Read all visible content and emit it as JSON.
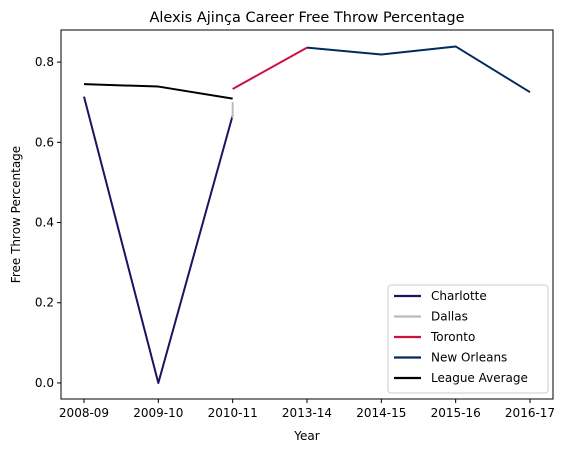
{
  "chart_data": {
    "type": "line",
    "title": "Alexis Ajinça Career Free Throw Percentage",
    "xlabel": "Year",
    "ylabel": "Free Throw Percentage",
    "categories": [
      "2008-09",
      "2009-10",
      "2010-11",
      "2013-14",
      "2014-15",
      "2015-16",
      "2016-17"
    ],
    "ylim": [
      -0.04,
      0.88
    ],
    "yticks": [
      0.0,
      0.2,
      0.4,
      0.6,
      0.8
    ],
    "ytick_labels": [
      "0.0",
      "0.2",
      "0.4",
      "0.6",
      "0.8"
    ],
    "grid": false,
    "legend_position": "lower-right",
    "series": [
      {
        "name": "Charlotte",
        "color": "#1d1160",
        "points": [
          [
            "2008-09",
            0.714
          ],
          [
            "2009-10",
            0.0
          ],
          [
            "2010-11",
            0.667
          ]
        ]
      },
      {
        "name": "Dallas",
        "color": "#bbbbbb",
        "points": [
          [
            "2010-11",
            0.7
          ],
          [
            "2010-11",
            0.66
          ]
        ]
      },
      {
        "name": "Toronto",
        "color": "#ce1141",
        "points": [
          [
            "2010-11",
            0.733
          ],
          [
            "2013-14",
            0.836
          ]
        ]
      },
      {
        "name": "New Orleans",
        "color": "#002b5c",
        "points": [
          [
            "2013-14",
            0.836
          ],
          [
            "2014-15",
            0.819
          ],
          [
            "2015-16",
            0.839
          ],
          [
            "2016-17",
            0.725
          ]
        ]
      },
      {
        "name": "League Average",
        "color": "#000000",
        "points": [
          [
            "2008-09",
            0.745
          ],
          [
            "2009-10",
            0.739
          ],
          [
            "2010-11",
            0.709
          ]
        ]
      }
    ]
  }
}
